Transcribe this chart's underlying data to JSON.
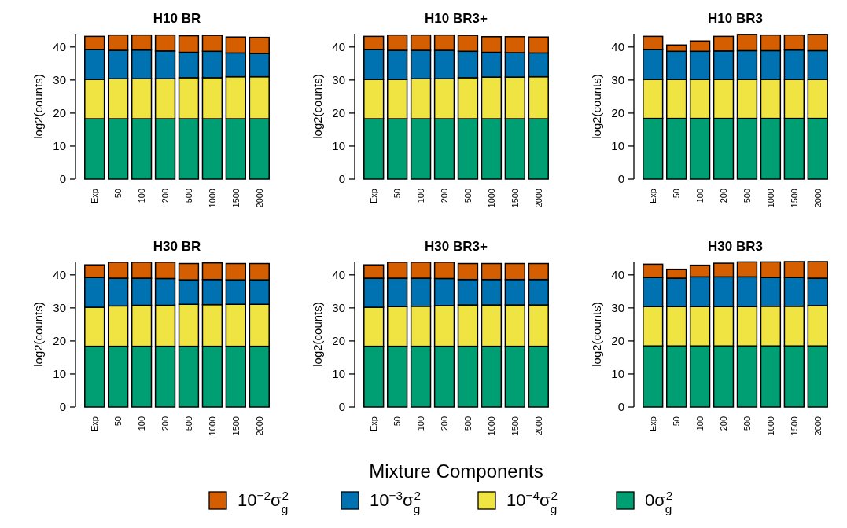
{
  "chart_data": [
    {
      "type": "bar",
      "stacked": true,
      "title": "H10 BR",
      "ylabel": "log2(counts)",
      "categories": [
        "Exp",
        "50",
        "100",
        "200",
        "500",
        "1000",
        "1500",
        "2000"
      ],
      "ylim": [
        0,
        44
      ],
      "yticks": [
        0,
        10,
        20,
        30,
        40
      ],
      "series": [
        {
          "color": "#009e73",
          "values": [
            18.3,
            18.3,
            18.3,
            18.3,
            18.3,
            18.3,
            18.3,
            18.3
          ]
        },
        {
          "color": "#f0e442",
          "values": [
            11.9,
            12.1,
            12.1,
            12.1,
            12.4,
            12.4,
            12.7,
            12.7
          ]
        },
        {
          "color": "#0072b2",
          "values": [
            9.0,
            8.6,
            8.7,
            8.4,
            7.7,
            8.0,
            7.2,
            7.0
          ]
        },
        {
          "color": "#d55e00",
          "values": [
            4.0,
            4.6,
            4.5,
            4.8,
            5.0,
            4.8,
            4.8,
            4.9
          ]
        }
      ]
    },
    {
      "type": "bar",
      "stacked": true,
      "title": "H10 BR3+",
      "ylabel": "log2(counts)",
      "categories": [
        "Exp",
        "50",
        "100",
        "200",
        "500",
        "1000",
        "1500",
        "2000"
      ],
      "ylim": [
        0,
        44
      ],
      "yticks": [
        0,
        10,
        20,
        30,
        40
      ],
      "series": [
        {
          "color": "#009e73",
          "values": [
            18.3,
            18.3,
            18.3,
            18.3,
            18.3,
            18.3,
            18.3,
            18.3
          ]
        },
        {
          "color": "#f0e442",
          "values": [
            11.9,
            11.9,
            12.1,
            12.1,
            12.4,
            12.6,
            12.6,
            12.7
          ]
        },
        {
          "color": "#0072b2",
          "values": [
            9.0,
            8.8,
            8.6,
            8.6,
            8.0,
            7.5,
            7.4,
            7.2
          ]
        },
        {
          "color": "#d55e00",
          "values": [
            4.0,
            4.6,
            4.6,
            4.6,
            4.8,
            4.7,
            4.8,
            4.8
          ]
        }
      ]
    },
    {
      "type": "bar",
      "stacked": true,
      "title": "H10 BR3",
      "ylabel": "log2(counts)",
      "categories": [
        "Exp",
        "50",
        "100",
        "200",
        "500",
        "1000",
        "1500",
        "2000"
      ],
      "ylim": [
        0,
        44
      ],
      "yticks": [
        0,
        10,
        20,
        30,
        40
      ],
      "series": [
        {
          "color": "#009e73",
          "values": [
            18.4,
            18.4,
            18.4,
            18.4,
            18.4,
            18.4,
            18.4,
            18.4
          ]
        },
        {
          "color": "#f0e442",
          "values": [
            11.8,
            11.8,
            11.8,
            11.8,
            11.8,
            11.8,
            11.8,
            11.8
          ]
        },
        {
          "color": "#0072b2",
          "values": [
            9.0,
            8.5,
            8.5,
            8.6,
            8.7,
            8.7,
            8.9,
            8.7
          ]
        },
        {
          "color": "#d55e00",
          "values": [
            4.0,
            1.9,
            3.1,
            4.4,
            4.9,
            4.7,
            4.5,
            4.9
          ]
        }
      ]
    },
    {
      "type": "bar",
      "stacked": true,
      "title": "H30 BR",
      "ylabel": "log2(counts)",
      "categories": [
        "Exp",
        "50",
        "100",
        "200",
        "500",
        "1000",
        "1500",
        "2000"
      ],
      "ylim": [
        0,
        44
      ],
      "yticks": [
        0,
        10,
        20,
        30,
        40
      ],
      "series": [
        {
          "color": "#009e73",
          "values": [
            18.4,
            18.4,
            18.4,
            18.4,
            18.4,
            18.4,
            18.4,
            18.4
          ]
        },
        {
          "color": "#f0e442",
          "values": [
            11.8,
            12.2,
            12.4,
            12.4,
            12.7,
            12.6,
            12.7,
            12.7
          ]
        },
        {
          "color": "#0072b2",
          "values": [
            9.0,
            8.4,
            8.2,
            8.1,
            7.4,
            7.6,
            7.4,
            7.4
          ]
        },
        {
          "color": "#d55e00",
          "values": [
            3.8,
            4.8,
            4.8,
            4.9,
            4.9,
            5.0,
            4.9,
            4.9
          ]
        }
      ]
    },
    {
      "type": "bar",
      "stacked": true,
      "title": "H30 BR3+",
      "ylabel": "log2(counts)",
      "xlabel": "Mixture Components",
      "categories": [
        "Exp",
        "50",
        "100",
        "200",
        "500",
        "1000",
        "1500",
        "2000"
      ],
      "ylim": [
        0,
        44
      ],
      "yticks": [
        0,
        10,
        20,
        30,
        40
      ],
      "legend": "bottom",
      "series": [
        {
          "name": "0σ$_{g}$$^{2}$",
          "color": "#009e73",
          "values": [
            18.4,
            18.4,
            18.4,
            18.4,
            18.4,
            18.4,
            18.4,
            18.4
          ]
        },
        {
          "name": "10$^{−4}$σ$_{g}$$^{2}$",
          "color": "#f0e442",
          "values": [
            11.8,
            12.0,
            12.1,
            12.3,
            12.5,
            12.5,
            12.5,
            12.5
          ]
        },
        {
          "name": "10$^{−3}$σ$_{g}$$^{2}$",
          "color": "#0072b2",
          "values": [
            8.8,
            8.6,
            8.5,
            8.2,
            7.7,
            7.7,
            7.7,
            7.7
          ]
        },
        {
          "name": "10$^{−2}$σ$_{g}$$^{2}$",
          "color": "#d55e00",
          "values": [
            4.0,
            4.8,
            4.8,
            4.9,
            4.8,
            4.8,
            4.8,
            4.8
          ]
        }
      ]
    },
    {
      "type": "bar",
      "stacked": true,
      "title": "H30 BR3",
      "ylabel": "log2(counts)",
      "categories": [
        "Exp",
        "50",
        "100",
        "200",
        "500",
        "1000",
        "1500",
        "2000"
      ],
      "ylim": [
        0,
        44
      ],
      "yticks": [
        0,
        10,
        20,
        30,
        40
      ],
      "series": [
        {
          "color": "#009e73",
          "values": [
            18.5,
            18.5,
            18.5,
            18.5,
            18.5,
            18.5,
            18.5,
            18.5
          ]
        },
        {
          "color": "#f0e442",
          "values": [
            11.9,
            11.9,
            11.9,
            11.9,
            11.9,
            12.0,
            12.0,
            12.2
          ]
        },
        {
          "color": "#0072b2",
          "values": [
            8.8,
            8.6,
            9.0,
            9.0,
            9.0,
            8.7,
            8.7,
            8.3
          ]
        },
        {
          "color": "#d55e00",
          "values": [
            4.0,
            2.7,
            3.5,
            4.1,
            4.5,
            4.7,
            4.8,
            5.0
          ]
        }
      ]
    }
  ]
}
